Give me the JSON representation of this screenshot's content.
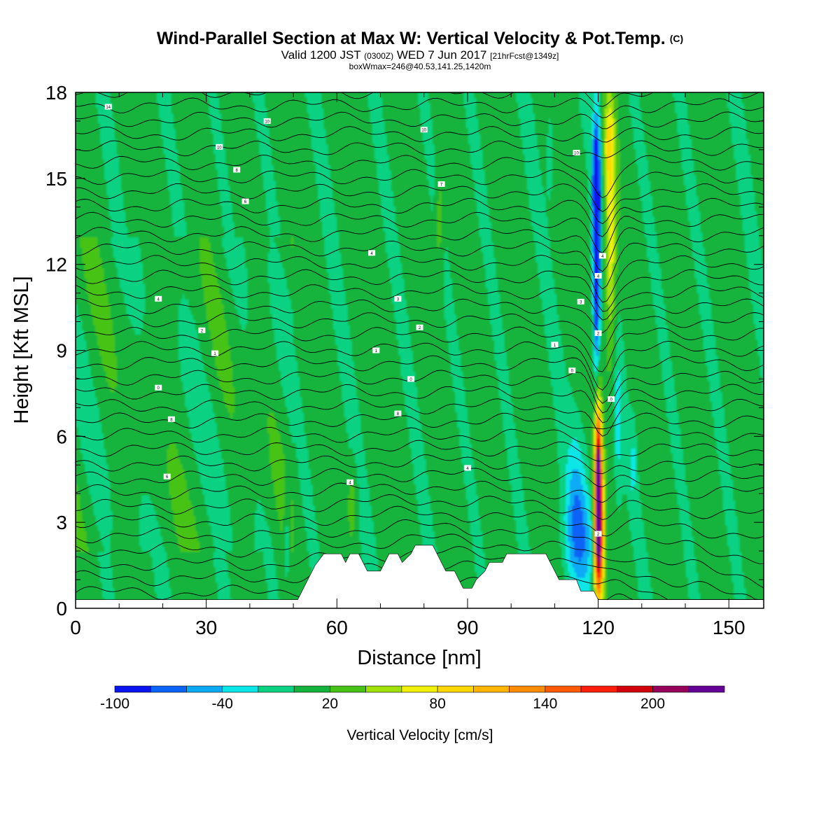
{
  "header": {
    "title": "Wind-Parallel Section at Max W: Vertical Velocity & Pot.Temp.",
    "title_mark": "(C)",
    "valid_prefix": "Valid 1200 JST",
    "valid_utc": "(0300Z)",
    "valid_date": "WED 7 Jun 2017",
    "forecast": "[21hrFcst@1349z]",
    "boxwmax": "boxWmax=246@40.53,141.25,1420m"
  },
  "chart_data": {
    "type": "heatmap",
    "xlabel": "Distance [nm]",
    "ylabel": "Height [Kft MSL]",
    "xlim": [
      0,
      158
    ],
    "ylim": [
      0,
      18
    ],
    "x_ticks": [
      "0",
      "30",
      "60",
      "90",
      "120",
      "150"
    ],
    "y_ticks": [
      "0",
      "3",
      "6",
      "9",
      "12",
      "15",
      "18"
    ],
    "grid": false,
    "colorbar": {
      "label": "Vertical Velocity [cm/s]",
      "tick_labels": [
        "-100",
        "-40",
        "20",
        "80",
        "140",
        "200"
      ],
      "levels": [
        -100,
        -80,
        -60,
        -40,
        -20,
        0,
        20,
        40,
        60,
        80,
        100,
        120,
        140,
        160,
        180,
        200,
        220,
        240
      ],
      "colors": [
        "#0a14f0",
        "#0a64f5",
        "#0aaaf5",
        "#0ae6e6",
        "#0ad282",
        "#14b43c",
        "#46c314",
        "#a0e10a",
        "#f0f00a",
        "#ffd700",
        "#ffb400",
        "#ff8c00",
        "#ff5a00",
        "#ff1e0a",
        "#d2000a",
        "#96005a",
        "#640096"
      ]
    },
    "background_field_color": "#0ad282",
    "features": [
      {
        "name": "downdraft band",
        "x_center": 119.5,
        "z_range": [
          7.5,
          16.5
        ],
        "min_w": -100
      },
      {
        "name": "updraft core",
        "x_center": 120,
        "z_range": [
          0.5,
          7.5
        ],
        "max_w": 246
      },
      {
        "name": "upper updraft band",
        "x_center": 123,
        "z_range": [
          8,
          17.5
        ],
        "max_w": 90
      },
      {
        "name": "low-level downdraft region",
        "x_center": 115,
        "z_range": [
          0.5,
          6
        ],
        "min_w": -50
      }
    ],
    "theta_isolines_label": "potential temperature contours",
    "contour_labels": [
      {
        "text": "14",
        "x": 7.5,
        "z": 17.5
      },
      {
        "text": "10",
        "x": 44,
        "z": 17.0
      },
      {
        "text": "10",
        "x": 80,
        "z": 16.7
      },
      {
        "text": "10",
        "x": 33,
        "z": 16.1
      },
      {
        "text": "10",
        "x": 115,
        "z": 15.9
      },
      {
        "text": "8",
        "x": 37,
        "z": 15.3
      },
      {
        "text": "7",
        "x": 84,
        "z": 14.8
      },
      {
        "text": "6",
        "x": 39,
        "z": 14.2
      },
      {
        "text": "4",
        "x": 68,
        "z": 12.4
      },
      {
        "text": "4",
        "x": 121,
        "z": 12.3
      },
      {
        "text": "4",
        "x": 120,
        "z": 11.6
      },
      {
        "text": "4",
        "x": 19,
        "z": 10.8
      },
      {
        "text": "3",
        "x": 74,
        "z": 10.8
      },
      {
        "text": "3",
        "x": 116,
        "z": 10.7
      },
      {
        "text": "2",
        "x": 29,
        "z": 9.7
      },
      {
        "text": "2",
        "x": 79,
        "z": 9.8
      },
      {
        "text": "2",
        "x": 120,
        "z": 9.6
      },
      {
        "text": "1",
        "x": 32,
        "z": 8.9
      },
      {
        "text": "1",
        "x": 69,
        "z": 9.0
      },
      {
        "text": "1",
        "x": 110,
        "z": 9.2
      },
      {
        "text": "0",
        "x": 19,
        "z": 7.7
      },
      {
        "text": "0",
        "x": 77,
        "z": 8.0
      },
      {
        "text": "0",
        "x": 114,
        "z": 8.3
      },
      {
        "text": "0",
        "x": 123,
        "z": 7.3
      },
      {
        "text": "8",
        "x": 22,
        "z": 6.6
      },
      {
        "text": "8",
        "x": 74,
        "z": 6.8
      },
      {
        "text": "6",
        "x": 21,
        "z": 4.6
      },
      {
        "text": "4",
        "x": 63,
        "z": 4.4
      },
      {
        "text": "4",
        "x": 90,
        "z": 4.9
      },
      {
        "text": "2",
        "x": 120,
        "z": 2.6
      }
    ],
    "terrain": [
      [
        0,
        0.3
      ],
      [
        51,
        0.3
      ],
      [
        52,
        0.6
      ],
      [
        53,
        0.9
      ],
      [
        54,
        1.2
      ],
      [
        55,
        1.5
      ],
      [
        57,
        1.9
      ],
      [
        61,
        1.9
      ],
      [
        62,
        1.6
      ],
      [
        63,
        1.9
      ],
      [
        65,
        1.9
      ],
      [
        66,
        1.6
      ],
      [
        67,
        1.3
      ],
      [
        70,
        1.3
      ],
      [
        71,
        1.6
      ],
      [
        72,
        1.9
      ],
      [
        74,
        1.9
      ],
      [
        75,
        1.6
      ],
      [
        77,
        1.9
      ],
      [
        78,
        2.2
      ],
      [
        82,
        2.2
      ],
      [
        83,
        1.9
      ],
      [
        84,
        1.6
      ],
      [
        85,
        1.3
      ],
      [
        87,
        1.3
      ],
      [
        88,
        1.0
      ],
      [
        89,
        0.7
      ],
      [
        91,
        0.7
      ],
      [
        92,
        1.0
      ],
      [
        94,
        1.3
      ],
      [
        95,
        1.6
      ],
      [
        98,
        1.6
      ],
      [
        99,
        1.9
      ],
      [
        108,
        1.9
      ],
      [
        109,
        1.6
      ],
      [
        110,
        1.3
      ],
      [
        111,
        1.0
      ],
      [
        115,
        1.0
      ],
      [
        116,
        0.6
      ],
      [
        119,
        0.6
      ],
      [
        120,
        0.3
      ],
      [
        158,
        0.3
      ]
    ]
  }
}
